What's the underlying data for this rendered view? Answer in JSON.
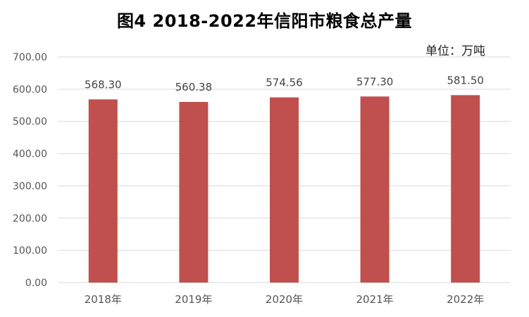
{
  "chart_data": {
    "type": "bar",
    "title": "图4   2018-2022年信阳市粮食总产量",
    "unit": "单位：万吨",
    "categories": [
      "2018年",
      "2019年",
      "2020年",
      "2021年",
      "2022年"
    ],
    "values": [
      568.3,
      560.38,
      574.56,
      577.3,
      581.5
    ],
    "value_labels": [
      "568.30",
      "560.38",
      "574.56",
      "577.30",
      "581.50"
    ],
    "yticks": [
      "0.00",
      "100.00",
      "200.00",
      "300.00",
      "400.00",
      "500.00",
      "600.00",
      "700.00"
    ],
    "ylim": [
      0,
      700
    ],
    "grid": true,
    "bar_color": "#C0504D",
    "grid_color": "#D9D9D9"
  }
}
